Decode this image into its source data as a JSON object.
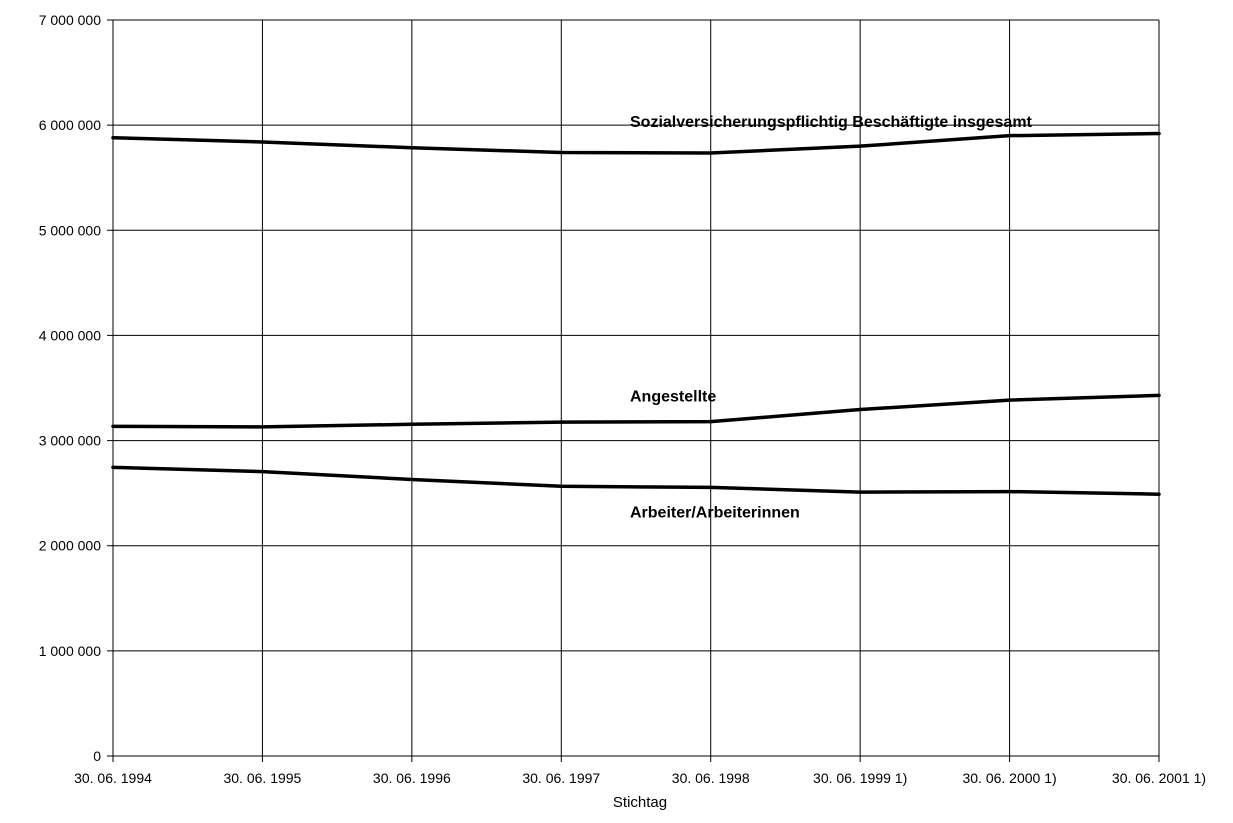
{
  "chart_data": {
    "type": "line",
    "title": "",
    "xlabel": "Stichtag",
    "ylabel": "",
    "categories": [
      "30. 06. 1994",
      "30. 06. 1995",
      "30. 06. 1996",
      "30. 06. 1997",
      "30. 06. 1998",
      "30. 06. 1999 1)",
      "30. 06. 2000 1)",
      "30. 06. 2001 1)"
    ],
    "ylim": [
      0,
      7000000
    ],
    "yticks": [
      0,
      1000000,
      2000000,
      3000000,
      4000000,
      5000000,
      6000000,
      7000000
    ],
    "ytick_labels": [
      "0",
      "1 000 000",
      "2 000 000",
      "3 000 000",
      "4 000 000",
      "5 000 000",
      "6 000 000",
      "7 000 000"
    ],
    "grid": true,
    "series": [
      {
        "name": "Sozialversicherungspflichtig Beschäftigte insgesamt",
        "color": "#000000",
        "values": [
          5880000,
          5840000,
          5785000,
          5740000,
          5735000,
          5800000,
          5900000,
          5920000
        ]
      },
      {
        "name": "Angestellte",
        "color": "#000000",
        "values": [
          3135000,
          3130000,
          3155000,
          3175000,
          3180000,
          3295000,
          3385000,
          3430000
        ]
      },
      {
        "name": "Arbeiter/Arbeiterinnen",
        "color": "#000000",
        "values": [
          2745000,
          2705000,
          2630000,
          2565000,
          2555000,
          2510000,
          2515000,
          2490000
        ]
      }
    ]
  }
}
